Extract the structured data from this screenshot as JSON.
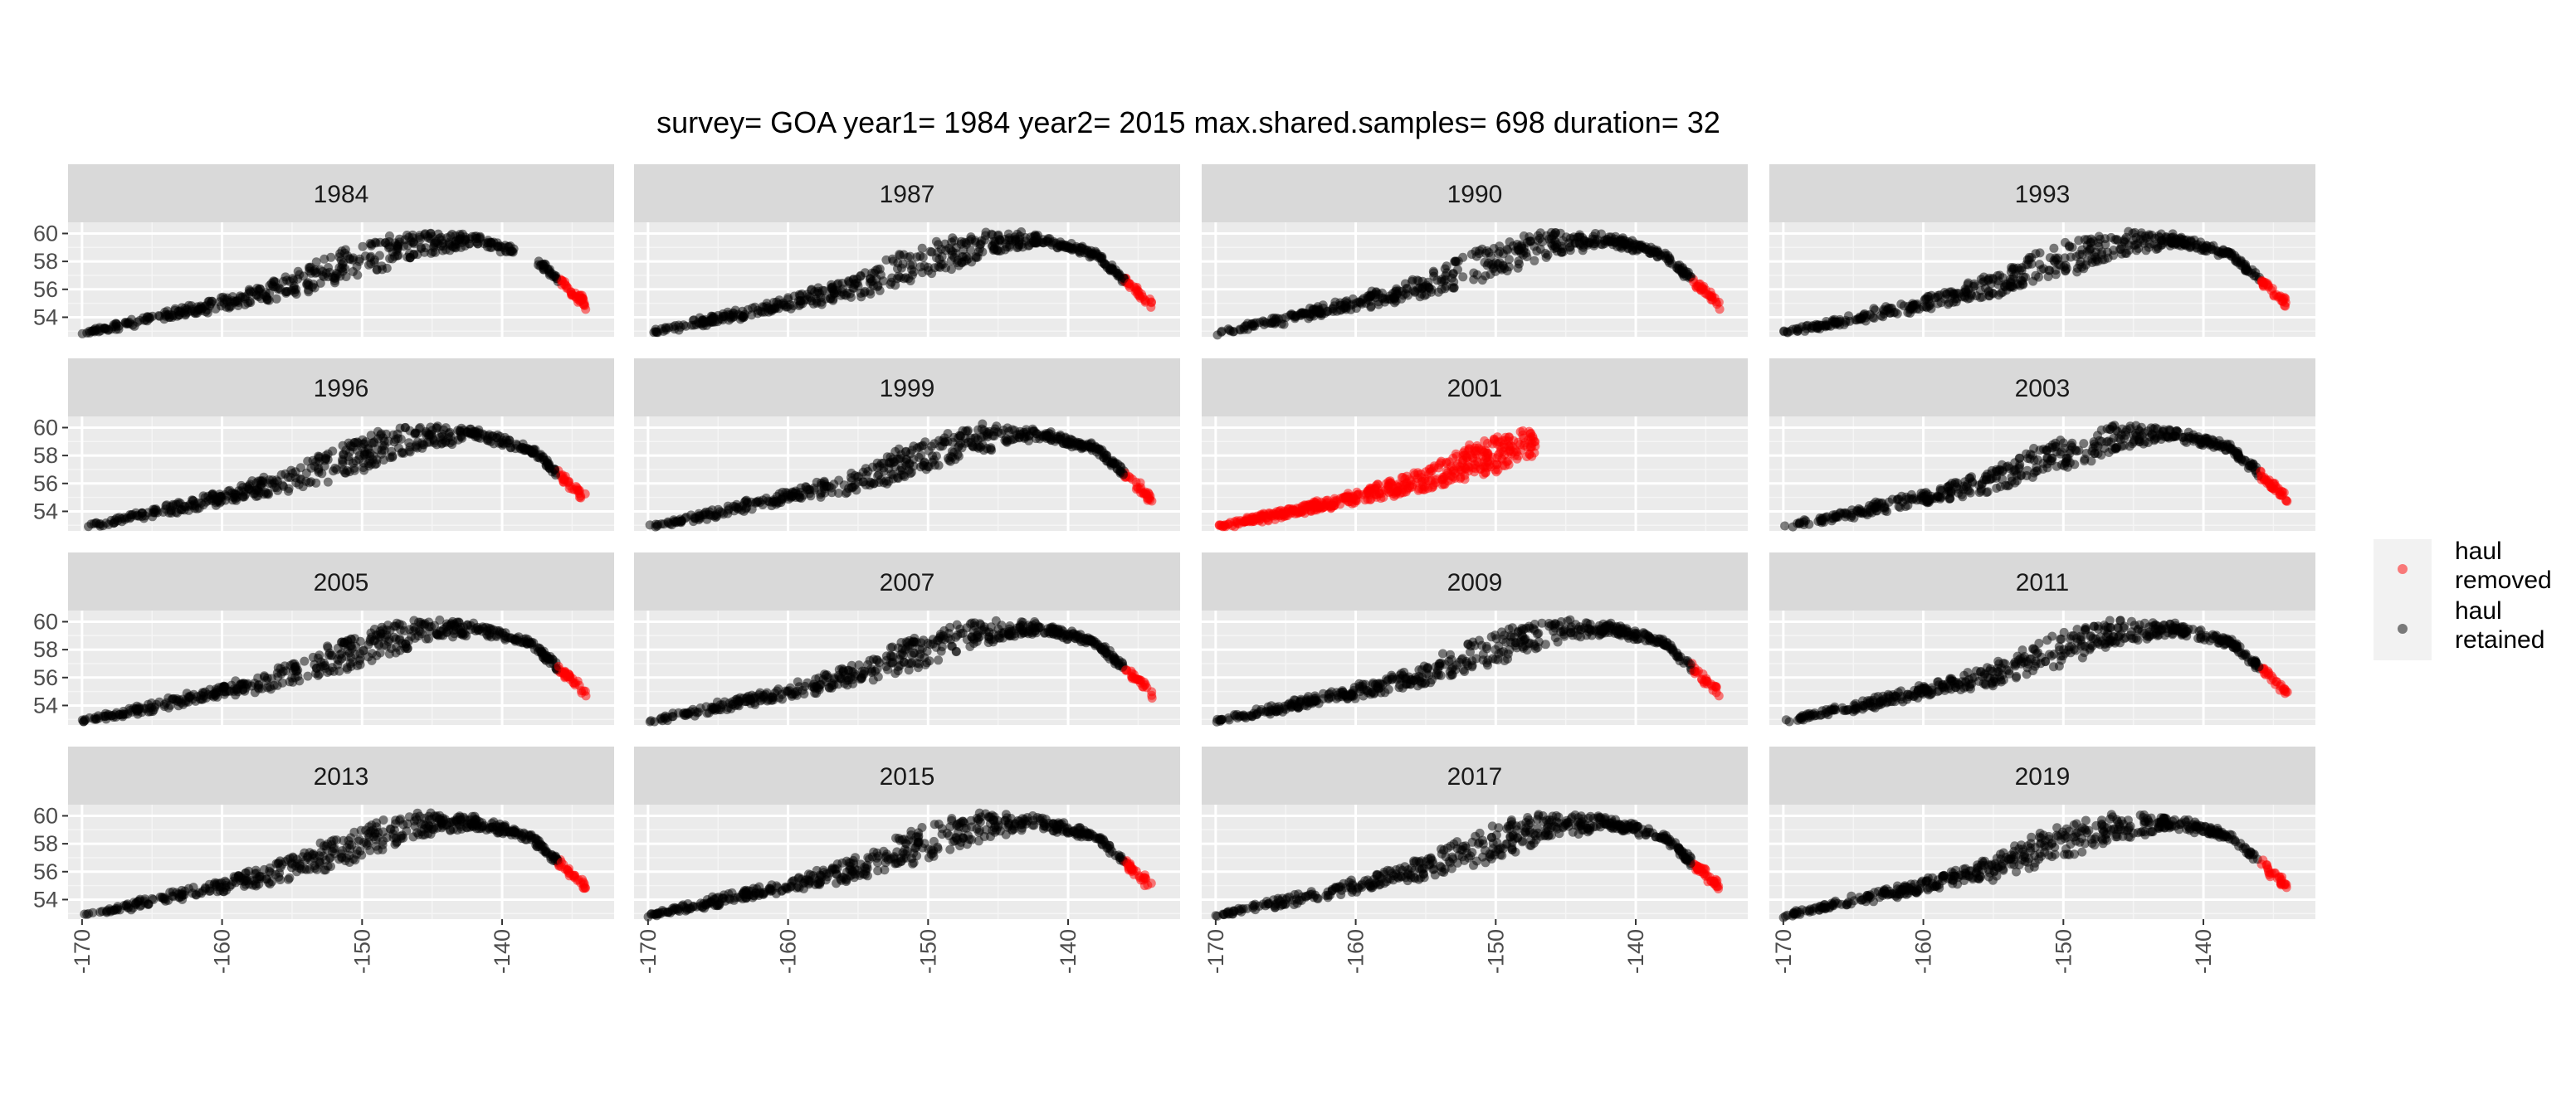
{
  "chart_data": {
    "type": "scatter",
    "title": "survey= GOA year1= 1984 year2= 2015 max.shared.samples= 698 duration= 32",
    "xlabel": "",
    "ylabel": "",
    "facets": [
      "1984",
      "1987",
      "1990",
      "1993",
      "1996",
      "1999",
      "2001",
      "2003",
      "2005",
      "2007",
      "2009",
      "2011",
      "2013",
      "2015",
      "2017",
      "2019"
    ],
    "facet_layout": {
      "rows": 4,
      "cols": 4
    },
    "x_ticks": [
      -170,
      -160,
      -150,
      -140
    ],
    "x_tick_labels": [
      "-170",
      "-160",
      "-150",
      "-140"
    ],
    "y_ticks": [
      54,
      56,
      58,
      60
    ],
    "y_tick_labels": [
      "54",
      "56",
      "58",
      "60"
    ],
    "xlim": [
      -171,
      -132
    ],
    "ylim": [
      52.6,
      60.8
    ],
    "grid": true,
    "legend_position": "right",
    "series": [
      {
        "name": "haul\nremoved",
        "label_lines": [
          "haul",
          "removed"
        ],
        "color": "#ff0000"
      },
      {
        "name": "haul\nretained",
        "label_lines": [
          "haul",
          "retained"
        ],
        "color": "#000000"
      }
    ],
    "point_alpha": 0.5,
    "removed_rule": {
      "all_points_removed_years": [
        "2001"
      ],
      "removed_lon_min": -136
    },
    "shape": {
      "lower_edge": [
        [
          -170,
          52.8
        ],
        [
          -165,
          53.6
        ],
        [
          -160,
          54.6
        ],
        [
          -155,
          55.5
        ],
        [
          -150,
          56.9
        ],
        [
          -146,
          58.4
        ],
        [
          -142,
          59.2
        ],
        [
          -138,
          58.3
        ],
        [
          -135.5,
          56.0
        ],
        [
          -134,
          54.6
        ]
      ],
      "upper_edge": [
        [
          -170,
          52.9
        ],
        [
          -165,
          54.2
        ],
        [
          -160,
          55.4
        ],
        [
          -155,
          57.0
        ],
        [
          -152,
          58.6
        ],
        [
          -149,
          59.6
        ],
        [
          -146,
          60.2
        ],
        [
          -142,
          59.9
        ],
        [
          -138,
          58.7
        ],
        [
          -135.5,
          56.5
        ],
        [
          -134,
          55.2
        ]
      ],
      "year_2001_lon_max": -147,
      "year_1984_gap_lon": [
        -139,
        -137.5
      ]
    }
  }
}
